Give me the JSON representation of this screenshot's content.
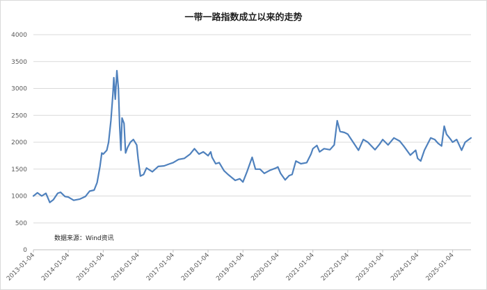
{
  "chart_data": {
    "type": "line",
    "title": "一带一路指数成立以来的走势",
    "xlabel": "",
    "ylabel": "",
    "ylim": [
      0,
      4000
    ],
    "yticks": [
      0,
      500,
      1000,
      1500,
      2000,
      2500,
      3000,
      3500,
      4000
    ],
    "xlim": [
      "2013-01-04",
      "2025-07-15"
    ],
    "xticks": [
      "2013-01-04",
      "2014-01-04",
      "2015-01-04",
      "2016-01-04",
      "2017-01-04",
      "2018-01-04",
      "2019-01-04",
      "2020-01-04",
      "2021-01-04",
      "2022-01-04",
      "2023-01-04",
      "2024-01-04",
      "2025-01-04"
    ],
    "grid": true,
    "legend": "none",
    "source_note": "数据来源：Wind资讯",
    "series": [
      {
        "color": "#4f81bd",
        "points": [
          [
            "2013-01-04",
            1000
          ],
          [
            "2013-02-15",
            1060
          ],
          [
            "2013-04-01",
            1000
          ],
          [
            "2013-05-15",
            1050
          ],
          [
            "2013-06-25",
            880
          ],
          [
            "2013-08-01",
            930
          ],
          [
            "2013-09-15",
            1050
          ],
          [
            "2013-10-15",
            1070
          ],
          [
            "2013-12-01",
            990
          ],
          [
            "2014-01-04",
            980
          ],
          [
            "2014-03-01",
            920
          ],
          [
            "2014-05-01",
            940
          ],
          [
            "2014-07-01",
            990
          ],
          [
            "2014-08-15",
            1090
          ],
          [
            "2014-10-01",
            1110
          ],
          [
            "2014-11-01",
            1250
          ],
          [
            "2014-12-01",
            1550
          ],
          [
            "2014-12-20",
            1800
          ],
          [
            "2015-01-04",
            1780
          ],
          [
            "2015-02-10",
            1850
          ],
          [
            "2015-03-01",
            2000
          ],
          [
            "2015-03-25",
            2400
          ],
          [
            "2015-04-15",
            2900
          ],
          [
            "2015-04-25",
            3200
          ],
          [
            "2015-05-10",
            2800
          ],
          [
            "2015-05-27",
            3330
          ],
          [
            "2015-06-12",
            3000
          ],
          [
            "2015-06-25",
            2300
          ],
          [
            "2015-07-08",
            1850
          ],
          [
            "2015-07-20",
            2450
          ],
          [
            "2015-08-10",
            2350
          ],
          [
            "2015-08-26",
            1800
          ],
          [
            "2015-09-15",
            1900
          ],
          [
            "2015-10-15",
            2000
          ],
          [
            "2015-11-15",
            2050
          ],
          [
            "2015-12-20",
            1950
          ],
          [
            "2016-01-04",
            1700
          ],
          [
            "2016-01-28",
            1370
          ],
          [
            "2016-03-01",
            1400
          ],
          [
            "2016-04-01",
            1520
          ],
          [
            "2016-06-01",
            1450
          ],
          [
            "2016-08-01",
            1550
          ],
          [
            "2016-10-01",
            1560
          ],
          [
            "2016-12-01",
            1600
          ],
          [
            "2017-01-04",
            1620
          ],
          [
            "2017-03-01",
            1680
          ],
          [
            "2017-05-01",
            1700
          ],
          [
            "2017-07-01",
            1780
          ],
          [
            "2017-08-15",
            1880
          ],
          [
            "2017-10-01",
            1780
          ],
          [
            "2017-11-15",
            1820
          ],
          [
            "2018-01-04",
            1750
          ],
          [
            "2018-02-01",
            1820
          ],
          [
            "2018-02-15",
            1720
          ],
          [
            "2018-03-25",
            1600
          ],
          [
            "2018-05-01",
            1620
          ],
          [
            "2018-06-20",
            1470
          ],
          [
            "2018-08-01",
            1400
          ],
          [
            "2018-10-15",
            1290
          ],
          [
            "2018-12-01",
            1320
          ],
          [
            "2019-01-04",
            1260
          ],
          [
            "2019-02-15",
            1450
          ],
          [
            "2019-04-10",
            1720
          ],
          [
            "2019-05-15",
            1500
          ],
          [
            "2019-07-01",
            1500
          ],
          [
            "2019-08-15",
            1420
          ],
          [
            "2019-10-15",
            1480
          ],
          [
            "2019-12-15",
            1520
          ],
          [
            "2020-01-04",
            1540
          ],
          [
            "2020-02-01",
            1420
          ],
          [
            "2020-03-20",
            1300
          ],
          [
            "2020-05-01",
            1380
          ],
          [
            "2020-06-01",
            1400
          ],
          [
            "2020-07-10",
            1650
          ],
          [
            "2020-09-01",
            1600
          ],
          [
            "2020-11-01",
            1620
          ],
          [
            "2020-12-15",
            1780
          ],
          [
            "2021-01-04",
            1880
          ],
          [
            "2021-02-15",
            1940
          ],
          [
            "2021-03-15",
            1820
          ],
          [
            "2021-05-01",
            1880
          ],
          [
            "2021-07-01",
            1860
          ],
          [
            "2021-08-15",
            1950
          ],
          [
            "2021-09-15",
            2400
          ],
          [
            "2021-10-15",
            2200
          ],
          [
            "2021-12-01",
            2180
          ],
          [
            "2022-01-04",
            2150
          ],
          [
            "2022-03-01",
            2000
          ],
          [
            "2022-04-26",
            1850
          ],
          [
            "2022-06-15",
            2050
          ],
          [
            "2022-08-01",
            2000
          ],
          [
            "2022-10-15",
            1860
          ],
          [
            "2022-12-01",
            1960
          ],
          [
            "2023-01-04",
            2050
          ],
          [
            "2023-03-01",
            1950
          ],
          [
            "2023-05-01",
            2080
          ],
          [
            "2023-07-01",
            2020
          ],
          [
            "2023-08-15",
            1920
          ],
          [
            "2023-10-20",
            1760
          ],
          [
            "2023-12-15",
            1850
          ],
          [
            "2024-01-04",
            1700
          ],
          [
            "2024-02-05",
            1650
          ],
          [
            "2024-03-15",
            1850
          ],
          [
            "2024-05-20",
            2080
          ],
          [
            "2024-07-01",
            2050
          ],
          [
            "2024-08-05",
            1980
          ],
          [
            "2024-09-10",
            1930
          ],
          [
            "2024-10-08",
            2300
          ],
          [
            "2024-11-01",
            2150
          ],
          [
            "2024-12-15",
            2050
          ],
          [
            "2025-01-04",
            2000
          ],
          [
            "2025-02-15",
            2050
          ],
          [
            "2025-04-08",
            1850
          ],
          [
            "2025-05-15",
            2000
          ],
          [
            "2025-07-15",
            2080
          ]
        ]
      }
    ]
  }
}
